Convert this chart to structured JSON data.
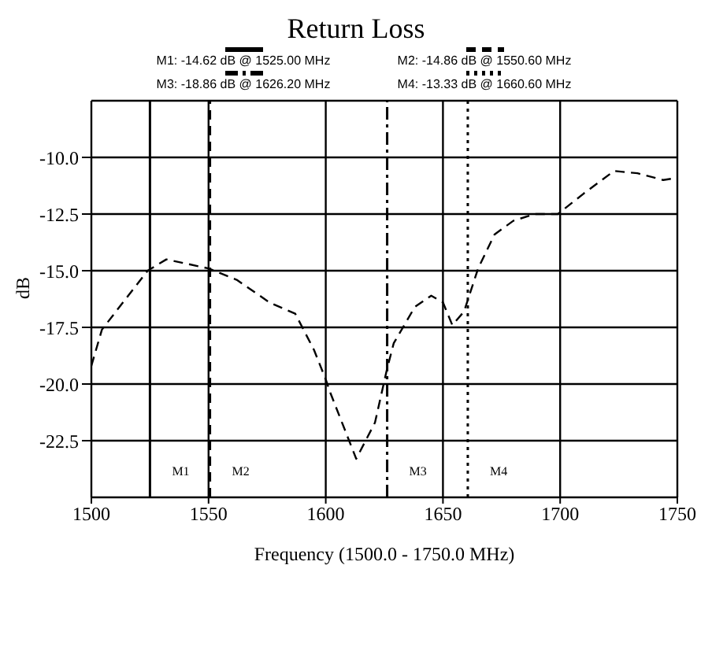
{
  "chart_data": {
    "type": "line",
    "title": "Return Loss",
    "xlabel": "Frequency (1500.0 - 1750.0 MHz)",
    "ylabel": "dB",
    "annotations": [
      "M1: -14.62 dB @ 1525.00 MHz",
      "M2: -14.86 dB @ 1550.60 MHz",
      "M3: -18.86 dB @ 1626.20 MHz",
      "M4: -13.33 dB @ 1660.60 MHz"
    ],
    "x": [
      1500,
      1504.5,
      1524,
      1532,
      1550,
      1562,
      1576,
      1587,
      1595,
      1600,
      1602,
      1613,
      1621,
      1626,
      1629,
      1638,
      1645,
      1650,
      1654,
      1659,
      1665,
      1672,
      1680,
      1689,
      1699,
      1710,
      1723,
      1733,
      1744,
      1750
    ],
    "series": [
      {
        "color": "#000000",
        "values": [
          -19.2,
          -17.6,
          -15.0,
          -14.5,
          -14.9,
          -15.4,
          -16.4,
          -16.9,
          -18.5,
          -19.8,
          -20.4,
          -23.3,
          -21.7,
          -19.4,
          -18.2,
          -16.6,
          -16.1,
          -16.4,
          -17.4,
          -16.8,
          -14.9,
          -13.4,
          -12.8,
          -12.5,
          -12.5,
          -11.6,
          -10.6,
          -10.7,
          -11.0,
          -10.9
        ]
      }
    ],
    "xlim": [
      1500,
      1750
    ],
    "xticks": [
      1500,
      1550,
      1600,
      1650,
      1700,
      1750
    ],
    "ylim": [
      -25,
      -7.5
    ],
    "yticks": [
      {
        "value": -22.5,
        "label": "-22.5"
      },
      {
        "value": -20,
        "label": "-20.0"
      },
      {
        "value": -17.5,
        "label": "-17.5"
      },
      {
        "value": -15,
        "label": "-15.0"
      },
      {
        "value": -12.5,
        "label": "-12.5"
      },
      {
        "value": -10,
        "label": "-10.0"
      }
    ],
    "ref_lines": [
      {
        "axis": "x",
        "value": 1525,
        "label": "M1",
        "color": "#000000",
        "line_style": "solid"
      },
      {
        "axis": "x",
        "value": 1550.6,
        "label": "M2",
        "color": "#000000",
        "line_style": "dashed"
      },
      {
        "axis": "x",
        "value": 1626.2,
        "label": "M3",
        "color": "#000000",
        "line_style": "dashdot"
      },
      {
        "axis": "x",
        "value": 1660.6,
        "label": "M4",
        "color": "#000000",
        "line_style": "dotted"
      }
    ],
    "grid": true,
    "marker": "none",
    "line_style": "dashed"
  }
}
